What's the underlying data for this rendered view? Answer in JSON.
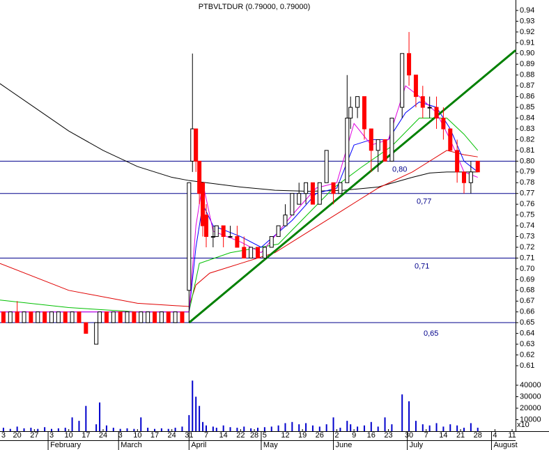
{
  "chart_data": {
    "type": "candlestick",
    "title": "PTBVLTDUR (0.79000, 0.79000)",
    "xlim": [
      0,
      150
    ],
    "ylim": [
      0.61,
      0.94
    ],
    "yticks": [
      0.94,
      0.93,
      0.92,
      0.91,
      {
        "value": 0.9,
        "label": "0.90"
      },
      0.89,
      0.88,
      0.87,
      0.86,
      0.85,
      0.84,
      0.83,
      0.82,
      0.81,
      {
        "value": 0.8,
        "label": "0.80"
      },
      0.79,
      0.78,
      0.77,
      0.76,
      0.75,
      0.74,
      0.73,
      0.72,
      0.71,
      {
        "value": 0.7,
        "label": "0.70"
      },
      0.69,
      0.68,
      0.67,
      0.66,
      0.65,
      0.64,
      0.63,
      0.62,
      0.61
    ],
    "xticks": [
      {
        "value": 1,
        "label": "3"
      },
      {
        "value": 5,
        "label": "20"
      },
      {
        "value": 10,
        "label": "27"
      },
      {
        "value": 15,
        "label": "3"
      },
      {
        "value": 20,
        "label": "10"
      },
      {
        "value": 25,
        "label": "17"
      },
      {
        "value": 30,
        "label": "24"
      },
      {
        "value": 35,
        "label": "3"
      },
      {
        "value": 40,
        "label": "10"
      },
      {
        "value": 45,
        "label": "17"
      },
      {
        "value": 50,
        "label": "24"
      },
      {
        "value": 55,
        "label": "31"
      },
      {
        "value": 60,
        "label": "7"
      },
      {
        "value": 65,
        "label": "14"
      },
      {
        "value": 70,
        "label": "22"
      },
      {
        "value": 74,
        "label": "28"
      },
      {
        "value": 77,
        "label": "5"
      },
      {
        "value": 83,
        "label": "12"
      },
      {
        "value": 88,
        "label": "19"
      },
      {
        "value": 93,
        "label": "26"
      },
      {
        "value": 98,
        "label": "2"
      },
      {
        "value": 103,
        "label": "9"
      },
      {
        "value": 108,
        "label": "16"
      },
      {
        "value": 113,
        "label": "23"
      },
      {
        "value": 119,
        "label": "30"
      },
      {
        "value": 124,
        "label": "7"
      },
      {
        "value": 129,
        "label": "14"
      },
      {
        "value": 134,
        "label": "21"
      },
      {
        "value": 139,
        "label": "28"
      },
      {
        "value": 144,
        "label": "4"
      },
      {
        "value": 149,
        "label": "11"
      }
    ],
    "months": [
      {
        "value": 14,
        "label": "February"
      },
      {
        "value": 34.5,
        "label": "March"
      },
      {
        "value": 55,
        "label": "April"
      },
      {
        "value": 76,
        "label": "May"
      },
      {
        "value": 97,
        "label": "June"
      },
      {
        "value": 118.5,
        "label": "July"
      },
      {
        "value": 143,
        "label": "August"
      }
    ],
    "up_color": "#ffffff",
    "down_color": "#ff0000",
    "x": [
      1,
      3,
      5,
      7,
      9,
      11,
      13,
      15,
      17,
      19,
      21,
      23,
      25,
      28,
      29,
      31,
      33,
      35,
      37,
      39,
      41,
      43,
      45,
      47,
      49,
      51,
      53,
      55,
      56,
      57,
      58,
      59,
      60,
      62,
      63,
      65,
      67,
      69,
      71,
      73,
      75,
      77,
      79,
      81,
      83,
      85,
      87,
      89,
      91,
      93,
      95,
      97,
      99,
      101,
      102,
      104,
      106,
      108,
      110,
      112,
      114,
      117,
      119,
      121,
      123,
      125,
      127,
      129,
      131,
      133,
      135,
      137,
      139
    ],
    "open": [
      0.66,
      0.65,
      0.66,
      0.65,
      0.66,
      0.65,
      0.66,
      0.65,
      0.65,
      0.66,
      0.65,
      0.66,
      0.65,
      0.63,
      0.65,
      0.66,
      0.65,
      0.66,
      0.65,
      0.66,
      0.65,
      0.65,
      0.66,
      0.65,
      0.66,
      0.65,
      0.66,
      0.68,
      0.8,
      0.83,
      0.8,
      0.78,
      0.75,
      0.73,
      0.73,
      0.74,
      0.73,
      0.73,
      0.72,
      0.71,
      0.72,
      0.71,
      0.72,
      0.73,
      0.74,
      0.75,
      0.76,
      0.77,
      0.78,
      0.76,
      0.78,
      0.78,
      0.77,
      0.78,
      0.84,
      0.85,
      0.86,
      0.83,
      0.81,
      0.82,
      0.8,
      0.85,
      0.9,
      0.88,
      0.86,
      0.85,
      0.85,
      0.84,
      0.83,
      0.81,
      0.79,
      0.78,
      0.8
    ],
    "high": [
      0.66,
      0.66,
      0.67,
      0.66,
      0.66,
      0.66,
      0.66,
      0.66,
      0.66,
      0.66,
      0.66,
      0.66,
      0.65,
      0.65,
      0.66,
      0.66,
      0.66,
      0.66,
      0.66,
      0.66,
      0.66,
      0.66,
      0.66,
      0.66,
      0.66,
      0.66,
      0.66,
      0.78,
      0.9,
      0.83,
      0.8,
      0.78,
      0.76,
      0.74,
      0.74,
      0.74,
      0.74,
      0.74,
      0.73,
      0.72,
      0.72,
      0.72,
      0.73,
      0.74,
      0.76,
      0.77,
      0.78,
      0.78,
      0.78,
      0.78,
      0.81,
      0.78,
      0.78,
      0.88,
      0.86,
      0.86,
      0.86,
      0.83,
      0.82,
      0.82,
      0.84,
      0.9,
      0.92,
      0.88,
      0.87,
      0.86,
      0.86,
      0.85,
      0.83,
      0.82,
      0.79,
      0.8,
      0.8
    ],
    "low": [
      0.65,
      0.65,
      0.65,
      0.65,
      0.65,
      0.65,
      0.65,
      0.65,
      0.65,
      0.65,
      0.65,
      0.65,
      0.64,
      0.63,
      0.65,
      0.65,
      0.65,
      0.65,
      0.65,
      0.65,
      0.65,
      0.65,
      0.65,
      0.65,
      0.65,
      0.65,
      0.65,
      0.65,
      0.79,
      0.79,
      0.76,
      0.73,
      0.72,
      0.72,
      0.73,
      0.72,
      0.73,
      0.72,
      0.71,
      0.71,
      0.71,
      0.71,
      0.72,
      0.73,
      0.74,
      0.75,
      0.76,
      0.76,
      0.76,
      0.76,
      0.78,
      0.76,
      0.77,
      0.78,
      0.83,
      0.84,
      0.82,
      0.79,
      0.79,
      0.8,
      0.8,
      0.84,
      0.87,
      0.85,
      0.84,
      0.84,
      0.83,
      0.82,
      0.81,
      0.78,
      0.77,
      0.77,
      0.79
    ],
    "close": [
      0.65,
      0.66,
      0.65,
      0.66,
      0.65,
      0.66,
      0.65,
      0.66,
      0.66,
      0.65,
      0.66,
      0.65,
      0.64,
      0.65,
      0.66,
      0.65,
      0.66,
      0.65,
      0.66,
      0.65,
      0.66,
      0.66,
      0.65,
      0.66,
      0.65,
      0.66,
      0.65,
      0.78,
      0.83,
      0.8,
      0.77,
      0.74,
      0.73,
      0.73,
      0.74,
      0.73,
      0.73,
      0.72,
      0.71,
      0.72,
      0.71,
      0.72,
      0.73,
      0.74,
      0.75,
      0.77,
      0.77,
      0.78,
      0.76,
      0.78,
      0.81,
      0.77,
      0.78,
      0.84,
      0.85,
      0.86,
      0.83,
      0.81,
      0.82,
      0.8,
      0.84,
      0.9,
      0.88,
      0.86,
      0.85,
      0.85,
      0.84,
      0.83,
      0.81,
      0.79,
      0.78,
      0.79,
      0.79
    ],
    "volume": {
      "color": "#0000cc",
      "ylim": [
        0,
        40000
      ],
      "yticks": [
        40000,
        30000,
        20000,
        10000
      ],
      "multiplier_label": "x10",
      "values": [
        3000,
        2000,
        4000,
        2500,
        3000,
        2000,
        3500,
        2000,
        2500,
        3000,
        12000,
        9000,
        22000,
        6000,
        25000,
        5000,
        3000,
        2000,
        2500,
        2000,
        12000,
        3000,
        2000,
        2500,
        2000,
        3000,
        4000,
        14000,
        44000,
        30000,
        22000,
        8000,
        5000,
        4000,
        3000,
        5000,
        3500,
        3000,
        4000,
        2500,
        3000,
        3500,
        4000,
        5000,
        7000,
        8000,
        6000,
        7000,
        5000,
        4000,
        6000,
        12000,
        3000,
        9000,
        6000,
        4000,
        5000,
        8000,
        4000,
        12000,
        6000,
        32000,
        26000,
        9000,
        6000,
        5000,
        7000,
        4000,
        6000,
        5000,
        3000,
        7000,
        3000
      ]
    },
    "overlays": [
      {
        "name": "MA black",
        "color": "#000000",
        "x": [
          0,
          10,
          20,
          30,
          40,
          50,
          55,
          60,
          70,
          80,
          90,
          100,
          110,
          120,
          125,
          130,
          135,
          139
        ],
        "values": [
          0.872,
          0.85,
          0.828,
          0.81,
          0.795,
          0.785,
          0.782,
          0.78,
          0.776,
          0.773,
          0.772,
          0.773,
          0.776,
          0.785,
          0.789,
          0.79,
          0.79,
          0.79
        ]
      },
      {
        "name": "MA red",
        "color": "#e00000",
        "x": [
          0,
          20,
          40,
          55,
          57,
          61,
          70,
          80,
          90,
          100,
          110,
          120,
          125,
          130,
          135,
          139
        ],
        "values": [
          0.705,
          0.68,
          0.668,
          0.665,
          0.685,
          0.696,
          0.705,
          0.715,
          0.735,
          0.755,
          0.775,
          0.79,
          0.8,
          0.81,
          0.806,
          0.804
        ]
      },
      {
        "name": "MA green",
        "color": "#00c000",
        "x": [
          0,
          20,
          40,
          55,
          58,
          67,
          81,
          97,
          105,
          114,
          122,
          130,
          135,
          139
        ],
        "values": [
          0.671,
          0.664,
          0.66,
          0.66,
          0.705,
          0.715,
          0.723,
          0.775,
          0.794,
          0.814,
          0.84,
          0.84,
          0.825,
          0.81
        ]
      },
      {
        "name": "MA blue",
        "color": "#0000ff",
        "x": [
          0,
          20,
          40,
          55,
          57,
          59,
          62,
          70,
          76,
          85,
          92,
          98,
          103,
          108,
          113,
          118,
          122,
          127,
          131,
          135,
          139
        ],
        "values": [
          0.66,
          0.66,
          0.66,
          0.66,
          0.72,
          0.76,
          0.74,
          0.73,
          0.72,
          0.745,
          0.77,
          0.775,
          0.815,
          0.82,
          0.82,
          0.845,
          0.855,
          0.85,
          0.83,
          0.8,
          0.79
        ]
      },
      {
        "name": "MA magenta",
        "color": "#e000e0",
        "x": [
          0,
          20,
          40,
          55,
          57,
          59,
          62,
          70,
          76,
          85,
          92,
          98,
          103,
          108,
          113,
          118,
          122,
          127,
          131,
          135,
          139
        ],
        "values": [
          0.66,
          0.66,
          0.66,
          0.66,
          0.74,
          0.78,
          0.735,
          0.725,
          0.715,
          0.75,
          0.775,
          0.78,
          0.835,
          0.815,
          0.82,
          0.87,
          0.86,
          0.845,
          0.82,
          0.79,
          0.785
        ]
      }
    ],
    "trendline": {
      "color": "#008000",
      "x": [
        55,
        150
      ],
      "values": [
        0.65,
        0.903
      ]
    },
    "levels": {
      "color": "#00008b",
      "values": [
        0.8,
        0.77,
        0.71,
        0.65
      ],
      "value_labels": [
        "0,80",
        "0,77",
        "0,71",
        "0,65"
      ]
    }
  }
}
